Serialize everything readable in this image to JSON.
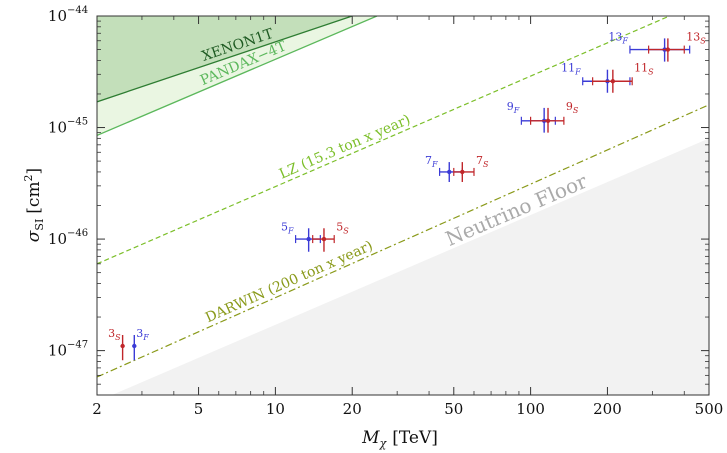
{
  "chart_data": {
    "type": "scatter",
    "x_scale": "log",
    "y_scale": "log",
    "xlim": [
      2,
      500
    ],
    "ylim": [
      4e-48,
      1e-44
    ],
    "xlabel": {
      "main": "M",
      "sub": "χ",
      "unit": "[TeV]"
    },
    "ylabel": {
      "main": "σ",
      "sub": "SI",
      "unit": "[cm",
      "sup": "2",
      "close": "]"
    },
    "x_ticks": [
      {
        "value": 2,
        "label": "2"
      },
      {
        "value": 5,
        "label": "5"
      },
      {
        "value": 10,
        "label": "10"
      },
      {
        "value": 20,
        "label": "20"
      },
      {
        "value": 50,
        "label": "50"
      },
      {
        "value": 100,
        "label": "100"
      },
      {
        "value": 200,
        "label": "200"
      },
      {
        "value": 500,
        "label": "500"
      }
    ],
    "y_ticks": [
      {
        "value": 1e-47,
        "base": "10",
        "exp": "−47"
      },
      {
        "value": 1e-46,
        "base": "10",
        "exp": "−46"
      },
      {
        "value": 1e-45,
        "base": "10",
        "exp": "−45"
      },
      {
        "value": 1e-44,
        "base": "10",
        "exp": "−44"
      }
    ],
    "colors": {
      "xenon": "#2e7d32",
      "pandax": "#5cb85c",
      "lz": "#7cbf2a",
      "darwin": "#8a9a1a",
      "fermion": "#3b3bd6",
      "scalar": "#c0262a",
      "floor": "#f2f2f2"
    },
    "bounds": [
      {
        "name": "XENON1T",
        "label": "XENON1T",
        "points": [
          [
            2,
            1.7e-45
          ],
          [
            20,
            1e-44
          ]
        ],
        "style": "solid"
      },
      {
        "name": "PANDAX-4T",
        "label": "PANDAX−4T",
        "points": [
          [
            2,
            8.5e-46
          ],
          [
            25,
            1e-44
          ]
        ],
        "style": "solid"
      },
      {
        "name": "LZ",
        "label": "LZ (15.3 ton x year)",
        "points": [
          [
            2,
            6e-47
          ],
          [
            350,
            1e-44
          ]
        ],
        "style": "dashed"
      },
      {
        "name": "DARWIN",
        "label": "DARWIN (200 ton x year)",
        "points": [
          [
            2,
            5.8e-48
          ],
          [
            500,
            1.6e-45
          ]
        ],
        "style": "dashdot"
      }
    ],
    "neutrino_floor": {
      "label": "Neutrino Floor",
      "points": [
        [
          2,
          3.5e-48
        ],
        [
          500,
          8e-46
        ]
      ]
    },
    "fermion_points": [
      {
        "label": "3",
        "sub": "F",
        "x": 2.8,
        "y": 1.1e-47,
        "x_err": [
          0,
          0
        ],
        "y_err": [
          8.2e-48,
          1.38e-47
        ]
      },
      {
        "label": "5",
        "sub": "F",
        "x": 13.5,
        "y": 1e-46,
        "x_err": [
          12.0,
          15.0
        ],
        "y_err": [
          7.7e-47,
          1.25e-46
        ]
      },
      {
        "label": "7",
        "sub": "F",
        "x": 48.0,
        "y": 4e-46,
        "x_err": [
          44.0,
          54.0
        ],
        "y_err": [
          3.25e-46,
          4.9e-46
        ]
      },
      {
        "label": "9",
        "sub": "F",
        "x": 113.0,
        "y": 1.15e-45,
        "x_err": [
          92.0,
          125.0
        ],
        "y_err": [
          9e-46,
          1.5e-45
        ]
      },
      {
        "label": "11",
        "sub": "F",
        "x": 200.0,
        "y": 2.6e-45,
        "x_err": [
          160.0,
          245.0
        ],
        "y_err": [
          2.05e-45,
          3.3e-45
        ]
      },
      {
        "label": "13",
        "sub": "F",
        "x": 335.0,
        "y": 5e-45,
        "x_err": [
          245.0,
          420.0
        ],
        "y_err": [
          3.9e-45,
          6.3e-45
        ]
      }
    ],
    "scalar_points": [
      {
        "label": "3",
        "sub": "S",
        "x": 2.52,
        "y": 1.1e-47,
        "x_err": [
          0,
          0
        ],
        "y_err": [
          8.2e-48,
          1.38e-47
        ]
      },
      {
        "label": "5",
        "sub": "S",
        "x": 15.5,
        "y": 1e-46,
        "x_err": [
          14.0,
          17.0
        ],
        "y_err": [
          7.7e-47,
          1.25e-46
        ]
      },
      {
        "label": "7",
        "sub": "S",
        "x": 54.0,
        "y": 4e-46,
        "x_err": [
          50.0,
          60.0
        ],
        "y_err": [
          3.25e-46,
          4.9e-46
        ]
      },
      {
        "label": "9",
        "sub": "S",
        "x": 117.0,
        "y": 1.15e-45,
        "x_err": [
          100.0,
          135.0
        ],
        "y_err": [
          9e-46,
          1.5e-45
        ]
      },
      {
        "label": "11",
        "sub": "S",
        "x": 210.0,
        "y": 2.6e-45,
        "x_err": [
          175.0,
          250.0
        ],
        "y_err": [
          2.05e-45,
          3.3e-45
        ]
      },
      {
        "label": "13",
        "sub": "S",
        "x": 345.0,
        "y": 5e-45,
        "x_err": [
          290.0,
          400.0
        ],
        "y_err": [
          3.9e-45,
          6.3e-45
        ]
      }
    ]
  }
}
